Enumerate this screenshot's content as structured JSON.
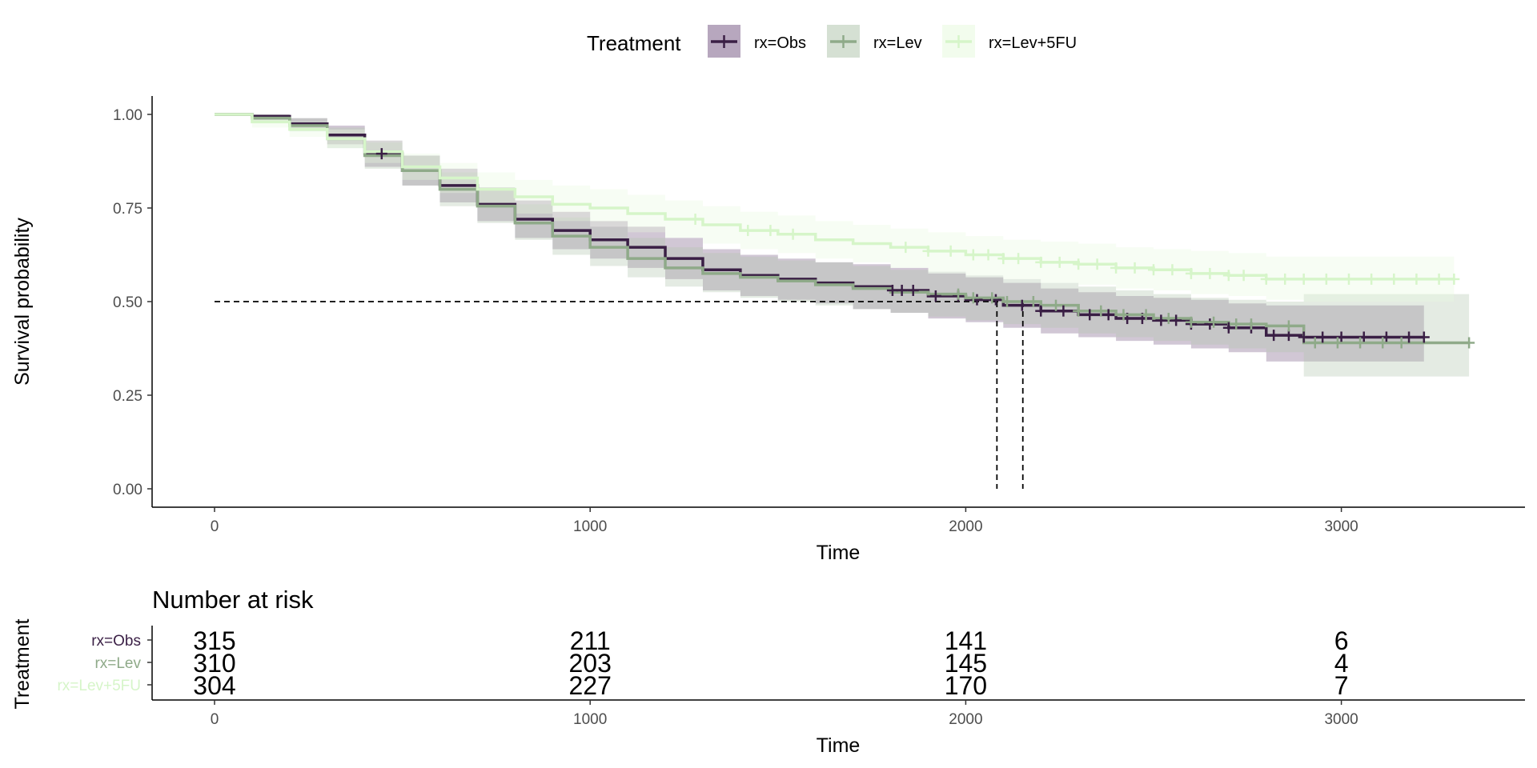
{
  "chart_data": {
    "type": "line",
    "subtype": "kaplan-meier survival curve",
    "legend": {
      "title": "Treatment",
      "placement": "top"
    },
    "xlabel": "Time",
    "ylabel": "Survival probability",
    "xlim": [
      -150,
      3500
    ],
    "ylim": [
      -0.05,
      1.05
    ],
    "x_ticks": [
      0,
      1000,
      2000,
      3000
    ],
    "x_tick_labels": [
      "0",
      "1000",
      "2000",
      "3000"
    ],
    "y_ticks": [
      0,
      0.25,
      0.5,
      0.75,
      1.0
    ],
    "y_tick_labels": [
      "0.00",
      "0.25",
      "0.50",
      "0.75",
      "1.00"
    ],
    "median_line": {
      "y": 0.5,
      "x_medians": [
        2083,
        2152
      ]
    },
    "series": [
      {
        "name": "rx=Obs",
        "color": "#3a1f45",
        "band_color": "#7b5e88",
        "x": [
          0,
          100,
          200,
          300,
          400,
          500,
          600,
          700,
          800,
          900,
          1000,
          1100,
          1200,
          1300,
          1400,
          1500,
          1600,
          1700,
          1800,
          1900,
          2000,
          2100,
          2200,
          2300,
          2400,
          2500,
          2600,
          2700,
          2800,
          2900,
          3000,
          3100,
          3220
        ],
        "y": [
          1.0,
          0.995,
          0.975,
          0.945,
          0.895,
          0.85,
          0.81,
          0.76,
          0.72,
          0.69,
          0.665,
          0.645,
          0.615,
          0.585,
          0.57,
          0.56,
          0.55,
          0.54,
          0.53,
          0.515,
          0.505,
          0.49,
          0.475,
          0.465,
          0.455,
          0.45,
          0.44,
          0.43,
          0.41,
          0.405,
          0.405,
          0.405,
          0.405
        ],
        "lower": [
          1.0,
          0.985,
          0.96,
          0.92,
          0.86,
          0.81,
          0.765,
          0.715,
          0.67,
          0.64,
          0.615,
          0.59,
          0.56,
          0.53,
          0.515,
          0.505,
          0.495,
          0.48,
          0.47,
          0.455,
          0.445,
          0.43,
          0.415,
          0.405,
          0.395,
          0.385,
          0.375,
          0.365,
          0.34,
          0.34,
          0.34,
          0.34,
          0.34
        ],
        "upper": [
          1.0,
          1.0,
          0.99,
          0.97,
          0.93,
          0.89,
          0.855,
          0.805,
          0.77,
          0.74,
          0.715,
          0.7,
          0.67,
          0.64,
          0.625,
          0.615,
          0.605,
          0.6,
          0.59,
          0.575,
          0.565,
          0.55,
          0.535,
          0.525,
          0.515,
          0.51,
          0.505,
          0.495,
          0.49,
          0.49,
          0.49,
          0.49,
          0.49
        ],
        "censor_x": [
          445,
          1805,
          1830,
          1860,
          1920,
          1980,
          2030,
          2080,
          2150,
          2200,
          2260,
          2330,
          2380,
          2430,
          2470,
          2520,
          2560,
          2600,
          2650,
          2700,
          2760,
          2820,
          2860,
          2900,
          2950,
          3000,
          3060,
          3120,
          3180,
          3220
        ]
      },
      {
        "name": "rx=Lev",
        "color": "#8faa89",
        "band_color": "#b3c6ae",
        "x": [
          0,
          100,
          200,
          300,
          400,
          500,
          600,
          700,
          800,
          900,
          1000,
          1100,
          1200,
          1300,
          1400,
          1500,
          1600,
          1700,
          1800,
          1900,
          2000,
          2100,
          2200,
          2300,
          2400,
          2500,
          2600,
          2700,
          2800,
          2900,
          3000,
          3100,
          3200,
          3340
        ],
        "y": [
          1.0,
          0.99,
          0.97,
          0.935,
          0.89,
          0.85,
          0.8,
          0.755,
          0.71,
          0.675,
          0.645,
          0.615,
          0.59,
          0.575,
          0.565,
          0.555,
          0.545,
          0.535,
          0.525,
          0.52,
          0.51,
          0.5,
          0.49,
          0.475,
          0.465,
          0.455,
          0.445,
          0.44,
          0.435,
          0.39,
          0.39,
          0.39,
          0.39,
          0.39
        ],
        "lower": [
          1.0,
          0.98,
          0.955,
          0.91,
          0.855,
          0.81,
          0.755,
          0.71,
          0.665,
          0.625,
          0.595,
          0.565,
          0.54,
          0.525,
          0.51,
          0.5,
          0.49,
          0.48,
          0.47,
          0.46,
          0.45,
          0.44,
          0.43,
          0.415,
          0.405,
          0.395,
          0.385,
          0.375,
          0.365,
          0.3,
          0.3,
          0.3,
          0.3,
          0.3
        ],
        "upper": [
          1.0,
          1.0,
          0.99,
          0.965,
          0.925,
          0.89,
          0.845,
          0.8,
          0.76,
          0.725,
          0.7,
          0.67,
          0.645,
          0.63,
          0.62,
          0.61,
          0.605,
          0.595,
          0.585,
          0.58,
          0.57,
          0.56,
          0.55,
          0.54,
          0.53,
          0.52,
          0.51,
          0.505,
          0.5,
          0.52,
          0.52,
          0.52,
          0.52,
          0.52
        ],
        "censor_x": [
          1980,
          2020,
          2070,
          2110,
          2180,
          2240,
          2300,
          2360,
          2420,
          2480,
          2540,
          2600,
          2660,
          2720,
          2760,
          2860,
          2930,
          2990,
          3050,
          3110,
          3160,
          3340
        ]
      },
      {
        "name": "rx=Lev+5FU",
        "color": "#d6f5c9",
        "band_color": "#e7f9df",
        "x": [
          0,
          100,
          200,
          300,
          400,
          500,
          600,
          700,
          800,
          900,
          1000,
          1100,
          1200,
          1300,
          1400,
          1500,
          1600,
          1700,
          1800,
          1900,
          2000,
          2100,
          2200,
          2300,
          2400,
          2500,
          2600,
          2700,
          2800,
          2900,
          3000,
          3100,
          3200,
          3300
        ],
        "y": [
          1.0,
          0.98,
          0.96,
          0.935,
          0.9,
          0.86,
          0.83,
          0.8,
          0.78,
          0.76,
          0.75,
          0.735,
          0.72,
          0.705,
          0.69,
          0.68,
          0.665,
          0.655,
          0.645,
          0.635,
          0.625,
          0.615,
          0.605,
          0.6,
          0.59,
          0.585,
          0.575,
          0.57,
          0.56,
          0.56,
          0.56,
          0.56,
          0.56,
          0.56
        ],
        "lower": [
          1.0,
          0.965,
          0.94,
          0.91,
          0.87,
          0.825,
          0.79,
          0.755,
          0.735,
          0.715,
          0.7,
          0.685,
          0.67,
          0.655,
          0.64,
          0.63,
          0.615,
          0.605,
          0.59,
          0.58,
          0.57,
          0.56,
          0.55,
          0.545,
          0.535,
          0.53,
          0.52,
          0.515,
          0.505,
          0.5,
          0.5,
          0.5,
          0.5,
          0.5
        ],
        "upper": [
          1.0,
          0.995,
          0.98,
          0.96,
          0.93,
          0.895,
          0.87,
          0.845,
          0.825,
          0.81,
          0.8,
          0.785,
          0.77,
          0.755,
          0.74,
          0.73,
          0.715,
          0.705,
          0.695,
          0.685,
          0.675,
          0.665,
          0.66,
          0.655,
          0.645,
          0.64,
          0.635,
          0.63,
          0.62,
          0.62,
          0.62,
          0.62,
          0.62,
          0.62
        ],
        "censor_x": [
          1280,
          1420,
          1480,
          1540,
          1840,
          1900,
          1960,
          2020,
          2060,
          2100,
          2140,
          2200,
          2250,
          2300,
          2350,
          2400,
          2450,
          2500,
          2550,
          2600,
          2650,
          2700,
          2740,
          2800,
          2850,
          2900,
          2960,
          3020,
          3080,
          3140,
          3200,
          3260,
          3300
        ]
      }
    ],
    "risk_table": {
      "title": "Number at risk",
      "ylabel": "Treatment",
      "xlabel": "Time",
      "times": [
        0,
        1000,
        2000,
        3000
      ],
      "rows": [
        {
          "label": "rx=Obs",
          "color": "#3a1f45",
          "counts": [
            "315",
            "211",
            "141",
            "6"
          ]
        },
        {
          "label": "rx=Lev",
          "color": "#8faa89",
          "counts": [
            "310",
            "203",
            "145",
            "4"
          ]
        },
        {
          "label": "rx=Lev+5FU",
          "color": "#d6f5c9",
          "counts": [
            "304",
            "227",
            "170",
            "7"
          ]
        }
      ]
    }
  }
}
